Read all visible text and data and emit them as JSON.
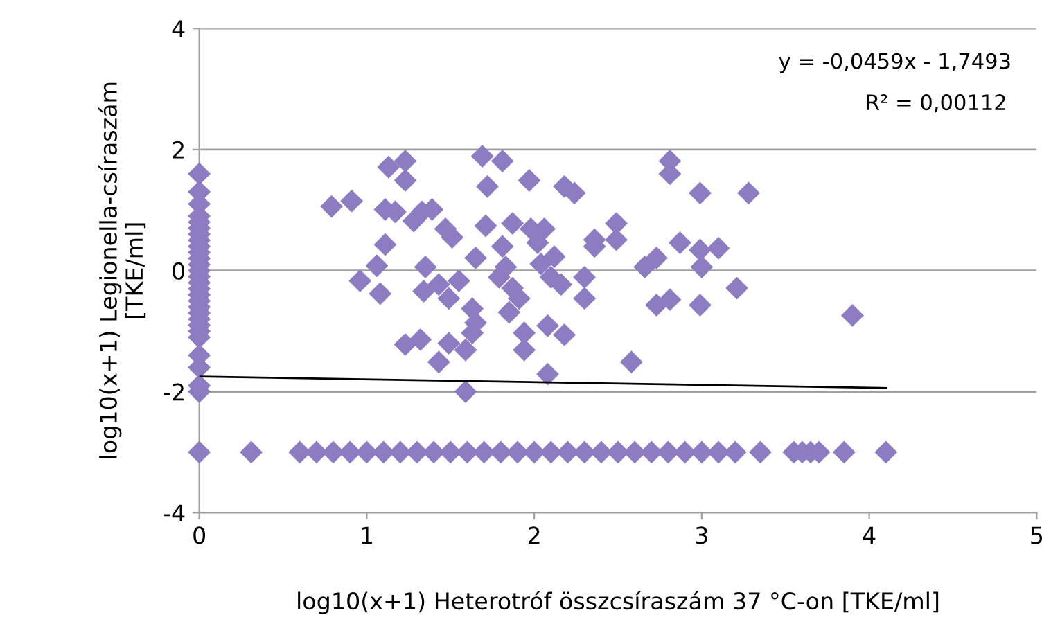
{
  "chart_data": {
    "type": "scatter",
    "xlabel": "log10(x+1) Heterotróf összcsíraszám 37 °C-on [TKE/ml]",
    "ylabel": "log10(x+1) Legionella-csíraszám\n[TKE/ml]",
    "xlim": [
      0,
      5
    ],
    "xticks": [
      0,
      1,
      2,
      3,
      4,
      5
    ],
    "ylim": [
      -4,
      4
    ],
    "yticks": [
      -4,
      -2,
      0,
      2,
      4
    ],
    "grid": "y",
    "marker": "diamond",
    "annotations": [
      "y = -0,0459x - 1,7493",
      "R² = 0,00112"
    ],
    "series": [
      {
        "color": "#8e7cc3",
        "x": [
          0,
          0,
          0,
          0,
          0,
          0,
          0,
          0,
          0,
          0,
          0,
          0,
          0,
          0,
          0,
          0,
          0,
          0,
          0,
          0,
          0,
          0,
          0,
          0,
          0,
          0,
          0,
          0,
          0,
          0.79,
          0.91,
          1.13,
          1.23,
          1.23,
          1.11,
          1.17,
          1.28,
          1.33,
          1.39,
          1.11,
          1.06,
          0.96,
          1.08,
          1.23,
          1.32,
          1.43,
          1.49,
          1.59,
          1.63,
          1.59,
          1.35,
          1.34,
          1.43,
          1.47,
          1.51,
          1.49,
          1.55,
          1.63,
          1.65,
          1.65,
          1.69,
          1.81,
          1.72,
          1.71,
          1.81,
          1.87,
          1.83,
          1.85,
          1.91,
          1.97,
          1.98,
          2.02,
          2.04,
          2.06,
          2.1,
          2.12,
          2.16,
          1.94,
          1.94,
          2.08,
          2.08,
          2.18,
          2.18,
          2.24,
          2.3,
          2.3,
          2.36,
          2.36,
          2.49,
          2.49,
          2.58,
          2.66,
          2.73,
          2.73,
          2.81,
          2.81,
          2.81,
          2.87,
          2.99,
          2.99,
          3.0,
          2.99,
          3.1,
          3.21,
          3.28,
          3.9,
          1.79,
          1.87,
          0.31,
          0.6,
          0.7,
          0.8,
          0.9,
          1.0,
          1.1,
          1.2,
          1.3,
          1.4,
          1.5,
          1.6,
          1.7,
          1.8,
          1.9,
          2.0,
          2.1,
          2.2,
          2.3,
          2.4,
          2.5,
          2.6,
          2.7,
          2.8,
          2.9,
          3.0,
          3.1,
          3.2,
          3.35,
          3.55,
          3.6,
          3.65,
          3.7,
          3.85,
          4.1
        ],
        "values": [
          1.6,
          1.3,
          1.1,
          0.9,
          0.8,
          0.7,
          0.6,
          0.5,
          0.4,
          0.3,
          0.2,
          0.1,
          0,
          -0.1,
          -0.2,
          -0.3,
          -0.4,
          -0.5,
          -0.6,
          -0.7,
          -0.8,
          -0.9,
          -1.0,
          -1.1,
          -1.4,
          -1.6,
          -1.9,
          -2.0,
          -3.0,
          1.06,
          1.15,
          1.71,
          1.81,
          1.49,
          1.01,
          0.97,
          0.82,
          0.97,
          1.01,
          0.43,
          0.08,
          -0.17,
          -0.38,
          -1.22,
          -1.14,
          -1.51,
          -1.2,
          -1.31,
          -1.03,
          -2.0,
          0.06,
          -0.34,
          -0.23,
          0.69,
          0.55,
          -0.46,
          -0.17,
          -0.63,
          -0.86,
          0.21,
          1.89,
          1.81,
          1.39,
          0.74,
          0.4,
          0.78,
          0.06,
          -0.69,
          -0.46,
          1.49,
          0.69,
          0.46,
          0.11,
          0.69,
          -0.11,
          0.23,
          -0.23,
          -1.03,
          -1.31,
          -1.71,
          -0.91,
          -1.06,
          1.39,
          1.28,
          -0.11,
          -0.46,
          0.51,
          0.4,
          0.78,
          0.51,
          -1.51,
          0.06,
          0.21,
          -0.57,
          -0.48,
          1.81,
          1.6,
          0.46,
          1.28,
          0.34,
          0.06,
          -0.57,
          0.37,
          -0.29,
          1.28,
          -0.74,
          -0.11,
          -0.29,
          -3,
          -3,
          -3,
          -3,
          -3,
          -3,
          -3,
          -3,
          -3,
          -3,
          -3,
          -3,
          -3,
          -3,
          -3,
          -3,
          -3,
          -3,
          -3,
          -3,
          -3,
          -3,
          -3,
          -3,
          -3,
          -3,
          -3,
          -3,
          -3,
          -3,
          -3,
          -3,
          -3,
          -3,
          -3
        ]
      },
      {
        "type": "line",
        "color": "#000000",
        "marker": "none",
        "x": [
          0,
          4.1
        ],
        "values": [
          -1.75,
          -1.94
        ]
      }
    ]
  }
}
